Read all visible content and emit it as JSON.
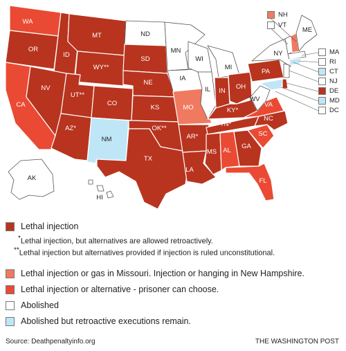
{
  "colors": {
    "lethal": "#b8341f",
    "gas_or_hanging": "#f07a5f",
    "alternative": "#ea4a33",
    "abolished": "#ffffff",
    "retroactive": "#bfe6f7"
  },
  "states": {
    "WA": "WA",
    "OR": "OR",
    "CA": "CA",
    "ID": "ID",
    "NV": "NV",
    "MT": "MT",
    "WY": "WY**",
    "UT": "UT**",
    "AZ": "AZ*",
    "CO": "CO",
    "NM": "NM",
    "ND": "ND",
    "SD": "SD",
    "NE": "NE",
    "KS": "KS",
    "OK": "OK**",
    "TX": "TX",
    "MN": "MN",
    "IA": "IA",
    "MO": "MO",
    "AR": "AR*",
    "LA": "LA",
    "WI": "WI",
    "IL": "IL",
    "MI": "MI",
    "IN": "IN",
    "OH": "OH",
    "KY": "KY*",
    "TN": "TN*",
    "MS": "MS",
    "AL": "AL",
    "GA": "GA",
    "FL": "FL",
    "SC": "SC",
    "NC": "NC",
    "VA": "VA",
    "WV": "WV",
    "PA": "PA",
    "NY": "NY",
    "ME": "ME",
    "AK": "AK",
    "HI": "HI"
  },
  "northeast_key": {
    "top": [
      {
        "abbr": "NH",
        "color": "gas_or_hanging"
      },
      {
        "abbr": "VT",
        "color": "abolished"
      }
    ],
    "side": [
      {
        "abbr": "MA",
        "color": "abolished"
      },
      {
        "abbr": "RI",
        "color": "abolished"
      },
      {
        "abbr": "CT",
        "color": "retroactive"
      },
      {
        "abbr": "NJ",
        "color": "abolished"
      },
      {
        "abbr": "DE",
        "color": "lethal"
      },
      {
        "abbr": "MD",
        "color": "retroactive"
      },
      {
        "abbr": "DC",
        "color": "abolished"
      }
    ]
  },
  "legend": {
    "lethal": "Lethal injection",
    "note1": "Lethal injection, but alternatives are allowed retroactively.",
    "note2": "Lethal injection but alternatives provided if injection is ruled unconstitutional.",
    "gas": "Lethal injection or gas in Missouri. Injection or hanging in New Hampshire.",
    "alternative": "Lethal injection or alternative - prisoner can choose.",
    "abolished": "Abolished",
    "retroactive": "Abolished but retroactive executions remain."
  },
  "source": "Source: Deathpenaltyinfo.org",
  "publisher": "THE WASHINGTON POST"
}
